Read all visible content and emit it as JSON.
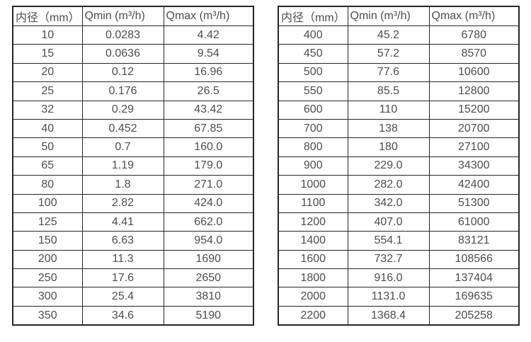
{
  "colors": {
    "border": "#262626",
    "text": "#4d4d4d",
    "background": "#ffffff"
  },
  "tables": [
    {
      "id": "small-diameter-table",
      "headers": [
        "内径（mm）",
        "Qmin (m³/h)",
        "Qmax (m³/h)"
      ],
      "rows": [
        [
          "10",
          "0.0283",
          "4.42"
        ],
        [
          "15",
          "0.0636",
          "9.54"
        ],
        [
          "20",
          "0.12",
          "16.96"
        ],
        [
          "25",
          "0.176",
          "26.5"
        ],
        [
          "32",
          "0.29",
          "43.42"
        ],
        [
          "40",
          "0.452",
          "67.85"
        ],
        [
          "50",
          "0.7",
          "160.0"
        ],
        [
          "65",
          "1.19",
          "179.0"
        ],
        [
          "80",
          "1.8",
          "271.0"
        ],
        [
          "100",
          "2.82",
          "424.0"
        ],
        [
          "125",
          "4.41",
          "662.0"
        ],
        [
          "150",
          "6.63",
          "954.0"
        ],
        [
          "200",
          "11.3",
          "1690"
        ],
        [
          "250",
          "17.6",
          "2650"
        ],
        [
          "300",
          "25.4",
          "3810"
        ],
        [
          "350",
          "34.6",
          "5190"
        ]
      ]
    },
    {
      "id": "large-diameter-table",
      "headers": [
        "内径（mm）",
        "Qmin (m³/h)",
        "Qmax (m³/h)"
      ],
      "rows": [
        [
          "400",
          "45.2",
          "6780"
        ],
        [
          "450",
          "57.2",
          "8570"
        ],
        [
          "500",
          "77.6",
          "10600"
        ],
        [
          "550",
          "85.5",
          "12800"
        ],
        [
          "600",
          "110",
          "15200"
        ],
        [
          "700",
          "138",
          "20700"
        ],
        [
          "800",
          "180",
          "27100"
        ],
        [
          "900",
          "229.0",
          "34300"
        ],
        [
          "1000",
          "282.0",
          "42400"
        ],
        [
          "1100",
          "342.0",
          "51300"
        ],
        [
          "1200",
          "407.0",
          "61000"
        ],
        [
          "1400",
          "554.1",
          "83121"
        ],
        [
          "1600",
          "732.7",
          "108566"
        ],
        [
          "1800",
          "916.0",
          "137404"
        ],
        [
          "2000",
          "1131.0",
          "169635"
        ],
        [
          "2200",
          "1368.4",
          "205258"
        ]
      ]
    }
  ]
}
